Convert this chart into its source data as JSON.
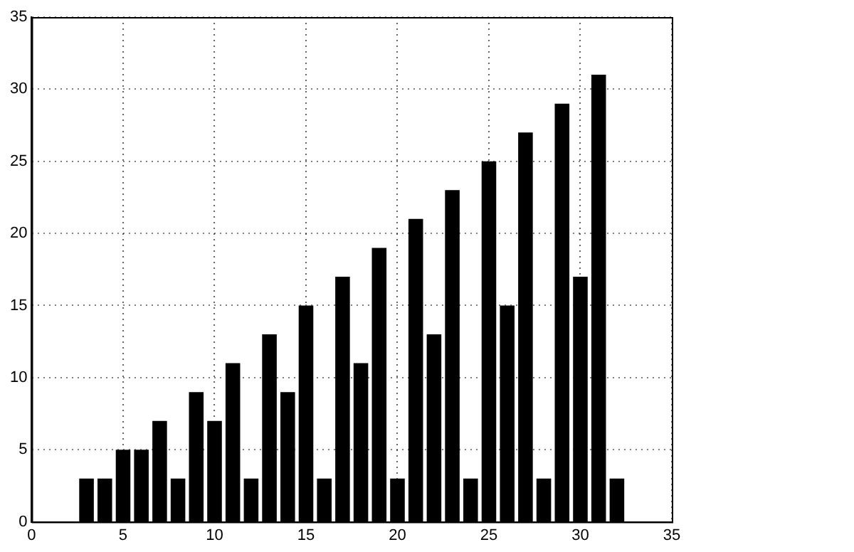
{
  "chart_data": {
    "type": "bar",
    "x": [
      3,
      4,
      5,
      6,
      7,
      8,
      9,
      10,
      11,
      12,
      13,
      14,
      15,
      16,
      17,
      18,
      19,
      20,
      21,
      22,
      23,
      24,
      25,
      26,
      27,
      28,
      29,
      30,
      31,
      32
    ],
    "values": [
      3,
      3,
      5,
      5,
      7,
      3,
      9,
      7,
      11,
      3,
      13,
      9,
      15,
      3,
      17,
      11,
      19,
      3,
      21,
      13,
      23,
      3,
      25,
      15,
      27,
      3,
      29,
      17,
      31,
      3
    ],
    "color": "#000000",
    "xlim": [
      0,
      35
    ],
    "xticks": [
      0,
      5,
      10,
      15,
      20,
      25,
      30,
      35
    ],
    "ylim": [
      0,
      35
    ],
    "yticks": [
      0,
      5,
      10,
      15,
      20,
      25,
      30,
      35
    ],
    "grid": true
  }
}
